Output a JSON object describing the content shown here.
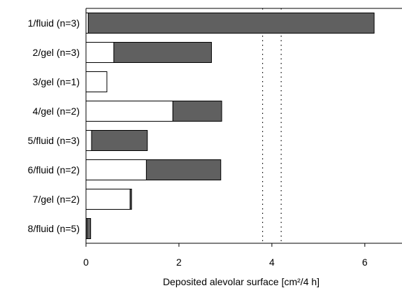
{
  "chart_data": {
    "type": "bar",
    "orientation": "horizontal",
    "stacked": true,
    "categories": [
      "1/fluid (n=3)",
      "2/gel (n=3)",
      "3/gel (n=1)",
      "4/gel (n=2)",
      "5/fluid (n=3)",
      "6/fluid (n=2)",
      "7/gel (n=2)",
      "8/fluid (n=5)"
    ],
    "series": [
      {
        "color": "#ffffff",
        "values": [
          0.05,
          0.6,
          0.45,
          1.87,
          0.12,
          1.3,
          0.95,
          0.02
        ]
      },
      {
        "color": "#606060",
        "values": [
          6.15,
          2.1,
          0.0,
          1.05,
          1.2,
          1.6,
          0.03,
          0.08
        ]
      }
    ],
    "reference_lines": [
      3.8,
      4.2
    ],
    "xlabel": "Deposited alevolar surface [cm²/4 h]",
    "ylabel": "",
    "title": "",
    "xlim": [
      0,
      6.8
    ],
    "xticks": [
      "0",
      "2",
      "4",
      "6"
    ],
    "tick_values": [
      0,
      2,
      4,
      6
    ],
    "grid": false,
    "legend": "none"
  }
}
